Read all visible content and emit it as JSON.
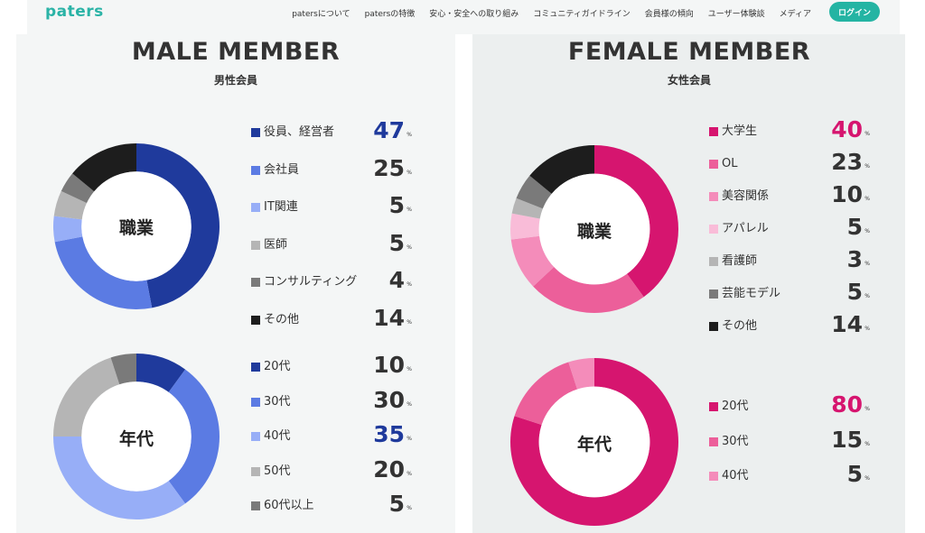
{
  "header": {
    "logo": "paters",
    "nav": [
      "patersについて",
      "patersの特徴",
      "安心・安全への取り組み",
      "コミュニティガイドライン",
      "会員様の傾向",
      "ユーザー体験談",
      "メディア"
    ],
    "login": "ログイン"
  },
  "male": {
    "title": "MALE MEMBER",
    "subtitle": "男性会員",
    "job": {
      "center": "職業",
      "items": [
        {
          "label": "役員、経営者",
          "value": "47",
          "unit": "%",
          "color": "#1f3a9c",
          "highlight": true
        },
        {
          "label": "会社員",
          "value": "25",
          "unit": "%",
          "color": "#5b7be3",
          "highlight": false
        },
        {
          "label": "IT関連",
          "value": "5",
          "unit": "%",
          "color": "#97aef7",
          "highlight": false
        },
        {
          "label": "医師",
          "value": "5",
          "unit": "%",
          "color": "#b5b5b5",
          "highlight": false
        },
        {
          "label": "コンサルティング",
          "value": "4",
          "unit": "%",
          "color": "#7a7a7a",
          "highlight": false
        },
        {
          "label": "その他",
          "value": "14",
          "unit": "%",
          "color": "#1d1d1d",
          "highlight": false
        }
      ]
    },
    "age": {
      "center": "年代",
      "items": [
        {
          "label": "20代",
          "value": "10",
          "unit": "%",
          "color": "#1f3a9c",
          "highlight": false
        },
        {
          "label": "30代",
          "value": "30",
          "unit": "%",
          "color": "#5b7be3",
          "highlight": false
        },
        {
          "label": "40代",
          "value": "35",
          "unit": "%",
          "color": "#97aef7",
          "highlight": true
        },
        {
          "label": "50代",
          "value": "20",
          "unit": "%",
          "color": "#b5b5b5",
          "highlight": false
        },
        {
          "label": "60代以上",
          "value": "5",
          "unit": "%",
          "color": "#7a7a7a",
          "highlight": false
        }
      ]
    }
  },
  "female": {
    "title": "FEMALE MEMBER",
    "subtitle": "女性会員",
    "job": {
      "center": "職業",
      "items": [
        {
          "label": "大学生",
          "value": "40",
          "unit": "%",
          "color": "#d6156f",
          "highlight": true
        },
        {
          "label": "OL",
          "value": "23",
          "unit": "%",
          "color": "#ec5f9a",
          "highlight": false
        },
        {
          "label": "美容関係",
          "value": "10",
          "unit": "%",
          "color": "#f48cba",
          "highlight": false
        },
        {
          "label": "アパレル",
          "value": "5",
          "unit": "%",
          "color": "#f9bcd8",
          "highlight": false
        },
        {
          "label": "看護師",
          "value": "3",
          "unit": "%",
          "color": "#b5b5b5",
          "highlight": false
        },
        {
          "label": "芸能モデル",
          "value": "5",
          "unit": "%",
          "color": "#7a7a7a",
          "highlight": false
        },
        {
          "label": "その他",
          "value": "14",
          "unit": "%",
          "color": "#1d1d1d",
          "highlight": false
        }
      ]
    },
    "age": {
      "center": "年代",
      "items": [
        {
          "label": "20代",
          "value": "80",
          "unit": "%",
          "color": "#d6156f",
          "highlight": true
        },
        {
          "label": "30代",
          "value": "15",
          "unit": "%",
          "color": "#ec5f9a",
          "highlight": false
        },
        {
          "label": "40代",
          "value": "5",
          "unit": "%",
          "color": "#f48cba",
          "highlight": false
        }
      ]
    }
  },
  "colors": {
    "male_highlight": "#1f3a9c",
    "female_highlight": "#d6156f",
    "accent": "#24b4a3"
  }
}
